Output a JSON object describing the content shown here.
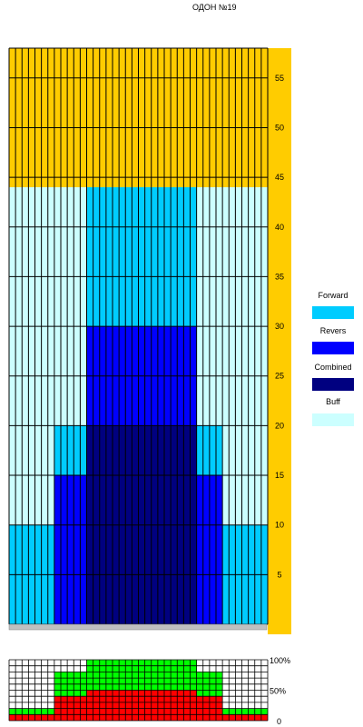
{
  "title": "ОДОН №19",
  "colors": {
    "forward": "#00ccff",
    "revers": "#0000ff",
    "combined": "#000080",
    "buff": "#ccffff",
    "empty": "#ffcc00",
    "base": "#c0c0c0",
    "green": "#00ff00",
    "red": "#ff0000"
  },
  "legend": [
    {
      "label": "Forward",
      "color": "#00ccff"
    },
    {
      "label": "Revers",
      "color": "#0000ff"
    },
    {
      "label": "Combined",
      "color": "#000080"
    },
    {
      "label": "Buff",
      "color": "#ccffff"
    }
  ],
  "chart_data": [
    {
      "type": "heatmap",
      "title": "ОДОН №19",
      "columns": 40,
      "ylim": [
        0,
        58
      ],
      "y_ticks": [
        "5",
        "10",
        "15",
        "20",
        "25",
        "30",
        "35",
        "40",
        "45",
        "50",
        "55"
      ],
      "series": [
        {
          "name": "Forward",
          "segments": [
            {
              "cols": [
                0,
                6
              ],
              "y": [
                0,
                10
              ]
            },
            {
              "cols": [
                33,
                39
              ],
              "y": [
                0,
                10
              ]
            },
            {
              "cols": [
                7,
                11
              ],
              "y": [
                15,
                20
              ]
            },
            {
              "cols": [
                29,
                32
              ],
              "y": [
                15,
                20
              ]
            },
            {
              "cols": [
                12,
                28
              ],
              "y": [
                30,
                44
              ]
            }
          ]
        },
        {
          "name": "Revers",
          "segments": [
            {
              "cols": [
                7,
                11
              ],
              "y": [
                0,
                15
              ]
            },
            {
              "cols": [
                29,
                32
              ],
              "y": [
                0,
                15
              ]
            },
            {
              "cols": [
                12,
                28
              ],
              "y": [
                20,
                30
              ]
            }
          ]
        },
        {
          "name": "Combined",
          "segments": [
            {
              "cols": [
                12,
                28
              ],
              "y": [
                0,
                20
              ]
            }
          ]
        },
        {
          "name": "Buff",
          "segments": [
            {
              "cols": [
                0,
                6
              ],
              "y": [
                10,
                44
              ]
            },
            {
              "cols": [
                7,
                11
              ],
              "y": [
                20,
                44
              ]
            },
            {
              "cols": [
                29,
                32
              ],
              "y": [
                20,
                44
              ]
            },
            {
              "cols": [
                33,
                39
              ],
              "y": [
                10,
                44
              ]
            }
          ]
        }
      ]
    },
    {
      "type": "bar",
      "columns": 40,
      "y_ticks": [
        "100%",
        "50%",
        "0"
      ],
      "ylim": [
        0,
        100
      ],
      "green_top_pct": [
        20,
        20,
        20,
        20,
        20,
        20,
        20,
        80,
        80,
        80,
        80,
        80,
        100,
        100,
        100,
        100,
        100,
        100,
        100,
        100,
        100,
        100,
        100,
        100,
        100,
        100,
        100,
        100,
        100,
        80,
        80,
        80,
        80,
        20,
        20,
        20,
        20,
        20,
        20,
        20
      ],
      "red_top_pct": [
        10,
        10,
        10,
        10,
        10,
        10,
        10,
        40,
        40,
        40,
        40,
        40,
        50,
        50,
        50,
        50,
        50,
        50,
        50,
        50,
        50,
        50,
        50,
        50,
        50,
        50,
        50,
        50,
        50,
        40,
        40,
        40,
        40,
        10,
        10,
        10,
        10,
        10,
        10,
        10
      ]
    }
  ]
}
